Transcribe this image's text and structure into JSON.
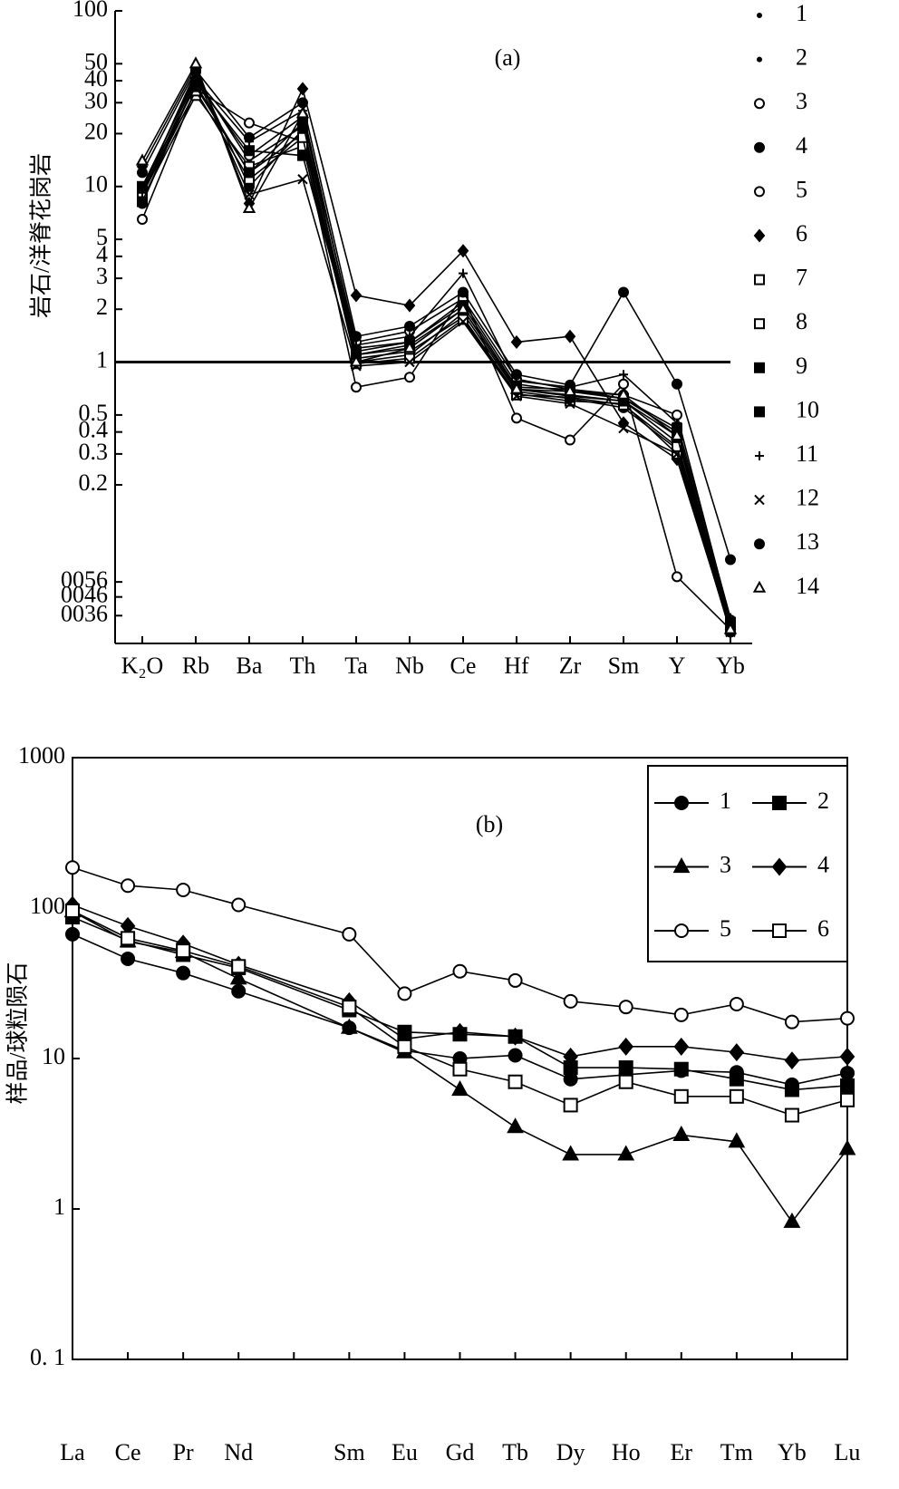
{
  "chart_data": [
    {
      "type": "line",
      "title": "(a)",
      "y_label": "岩石/洋脊花岗岩",
      "log_y": true,
      "hline": 1,
      "categories": [
        "K₂O",
        "Rb",
        "Ba",
        "Th",
        "Ta",
        "Nb",
        "Ce",
        "Hf",
        "Zr",
        "Sm",
        "Y",
        "Yb"
      ],
      "ylim": [
        0.025,
        100
      ],
      "yticks": [
        100,
        50,
        40,
        30,
        20,
        10,
        5,
        4,
        3,
        2,
        1,
        0.5,
        0.4,
        0.3,
        0.2,
        {
          "value": 0.056,
          "label": "0056"
        },
        {
          "value": 0.046,
          "label": "0046"
        },
        {
          "value": 0.036,
          "label": "0036"
        }
      ],
      "legend": "right",
      "series": [
        {
          "name": "1",
          "color": "#000",
          "marker": "dot",
          "values": [
            9,
            38,
            12,
            20,
            1.1,
            1.2,
            2.0,
            0.7,
            0.65,
            0.6,
            0.35,
            0.03
          ]
        },
        {
          "name": "2",
          "color": "#000",
          "marker": "dot",
          "values": [
            10,
            42,
            14,
            22,
            1.2,
            1.3,
            2.2,
            0.75,
            0.68,
            0.62,
            0.4,
            0.032
          ]
        },
        {
          "name": "3",
          "color": "#000",
          "marker": "circle-open",
          "values": [
            6.5,
            36,
            23,
            18,
            0.72,
            0.82,
            2.4,
            0.48,
            0.36,
            0.75,
            0.06,
            0.03
          ]
        },
        {
          "name": "4",
          "color": "#000",
          "marker": "circle",
          "values": [
            9.5,
            45,
            10,
            21,
            1.0,
            1.1,
            1.9,
            0.68,
            0.62,
            0.55,
            0.32,
            0.029
          ]
        },
        {
          "name": "5",
          "color": "#000",
          "marker": "circle-open",
          "values": [
            8,
            40,
            15,
            25,
            1.3,
            1.5,
            2.3,
            0.8,
            0.7,
            0.65,
            0.5,
            0.034
          ]
        },
        {
          "name": "6",
          "color": "#000",
          "marker": "diamond",
          "values": [
            13,
            48,
            8,
            36,
            2.4,
            2.1,
            4.3,
            1.3,
            1.4,
            0.45,
            0.28,
            0.03
          ]
        },
        {
          "name": "7",
          "color": "#000",
          "marker": "square-open",
          "values": [
            8.5,
            33,
            13,
            17,
            1.05,
            1.15,
            1.8,
            0.66,
            0.6,
            0.58,
            0.3,
            0.03
          ]
        },
        {
          "name": "8",
          "color": "#000",
          "marker": "square-open",
          "values": [
            9,
            35,
            11,
            19,
            0.98,
            1.05,
            1.75,
            0.65,
            0.63,
            0.57,
            0.33,
            0.031
          ]
        },
        {
          "name": "9",
          "color": "#000",
          "marker": "square",
          "values": [
            10,
            37,
            12,
            23,
            1.1,
            1.25,
            2.0,
            0.7,
            0.64,
            0.6,
            0.38,
            0.032
          ]
        },
        {
          "name": "10",
          "color": "#000",
          "marker": "square",
          "values": [
            8.2,
            39,
            16,
            15,
            1.15,
            1.3,
            2.1,
            0.72,
            0.7,
            0.62,
            0.42,
            0.033
          ]
        },
        {
          "name": "11",
          "color": "#000",
          "marker": "plus",
          "values": [
            9.2,
            41,
            18,
            27,
            1.25,
            1.4,
            3.2,
            0.78,
            0.72,
            0.85,
            0.45,
            0.035
          ]
        },
        {
          "name": "12",
          "color": "#000",
          "marker": "cross",
          "values": [
            9.8,
            43,
            9,
            11,
            0.95,
            1.0,
            1.7,
            0.64,
            0.58,
            0.42,
            0.3,
            0.029
          ]
        },
        {
          "name": "13",
          "color": "#000",
          "marker": "circle",
          "values": [
            12,
            46,
            19,
            30,
            1.4,
            1.6,
            2.5,
            0.85,
            0.74,
            2.5,
            0.75,
            0.075
          ]
        },
        {
          "name": "14",
          "color": "#000",
          "marker": "triangle-open",
          "values": [
            14,
            50,
            7.5,
            26,
            1.0,
            1.2,
            2.0,
            0.7,
            0.68,
            0.65,
            0.38,
            0.03
          ]
        }
      ]
    },
    {
      "type": "line",
      "title": "(b)",
      "y_label": "样品/球粒陨石",
      "log_y": true,
      "x": [
        1,
        2,
        3,
        4,
        6,
        7,
        8,
        9,
        10,
        11,
        12,
        13,
        14,
        15
      ],
      "xlim": [
        1,
        15
      ],
      "xticks": [
        {
          "value": 1,
          "label": "La"
        },
        {
          "value": 2,
          "label": "Ce"
        },
        {
          "value": 3,
          "label": "Pr"
        },
        {
          "value": 4,
          "label": "Nd"
        },
        {
          "value": 6,
          "label": "Sm"
        },
        {
          "value": 7,
          "label": "Eu"
        },
        {
          "value": 8,
          "label": "Gd"
        },
        {
          "value": 9,
          "label": "Tb"
        },
        {
          "value": 10,
          "label": "Dy"
        },
        {
          "value": 11,
          "label": "Ho"
        },
        {
          "value": 12,
          "label": "Er"
        },
        {
          "value": 13,
          "label": "Tm"
        },
        {
          "value": 14,
          "label": "Yb"
        },
        {
          "value": 15,
          "label": "Lu"
        }
      ],
      "ylim": [
        0.1,
        1000
      ],
      "yticks": [
        1000,
        100,
        10,
        1,
        {
          "value": 0.1,
          "label": "0. 1"
        }
      ],
      "legend": "upper right",
      "series": [
        {
          "name": "1",
          "color": "#000",
          "marker": "circle",
          "values": [
            67,
            46,
            37,
            28,
            16,
            11.3,
            10,
            10.5,
            7.3,
            7.8,
            8.3,
            8.1,
            6.7,
            8
          ]
        },
        {
          "name": "2",
          "color": "#000",
          "marker": "square",
          "values": [
            87,
            61,
            49,
            40,
            21,
            15,
            14.5,
            14,
            8.7,
            8.7,
            8.5,
            7.3,
            6.2,
            6.6
          ]
        },
        {
          "name": "3",
          "color": "#000",
          "marker": "triangle",
          "values": [
            95,
            60,
            51,
            34,
            16,
            11,
            6.2,
            3.5,
            2.3,
            2.3,
            3.1,
            2.8,
            0.82,
            2.5
          ]
        },
        {
          "name": "4",
          "color": "#000",
          "marker": "diamond",
          "values": [
            105,
            76,
            58,
            42,
            24,
            13.5,
            15,
            14,
            10.3,
            12,
            12,
            11,
            9.7,
            10.3
          ]
        },
        {
          "name": "5",
          "color": "#000",
          "marker": "circle-open",
          "values": [
            186,
            141,
            132,
            105,
            67,
            27,
            38,
            33,
            24,
            22,
            19.5,
            23,
            17.5,
            18.5
          ]
        },
        {
          "name": "6",
          "color": "#000",
          "marker": "square-open",
          "values": [
            96,
            63,
            52,
            41,
            22,
            12,
            8.5,
            7,
            4.9,
            7,
            5.6,
            5.6,
            4.2,
            5.3
          ]
        }
      ]
    }
  ]
}
